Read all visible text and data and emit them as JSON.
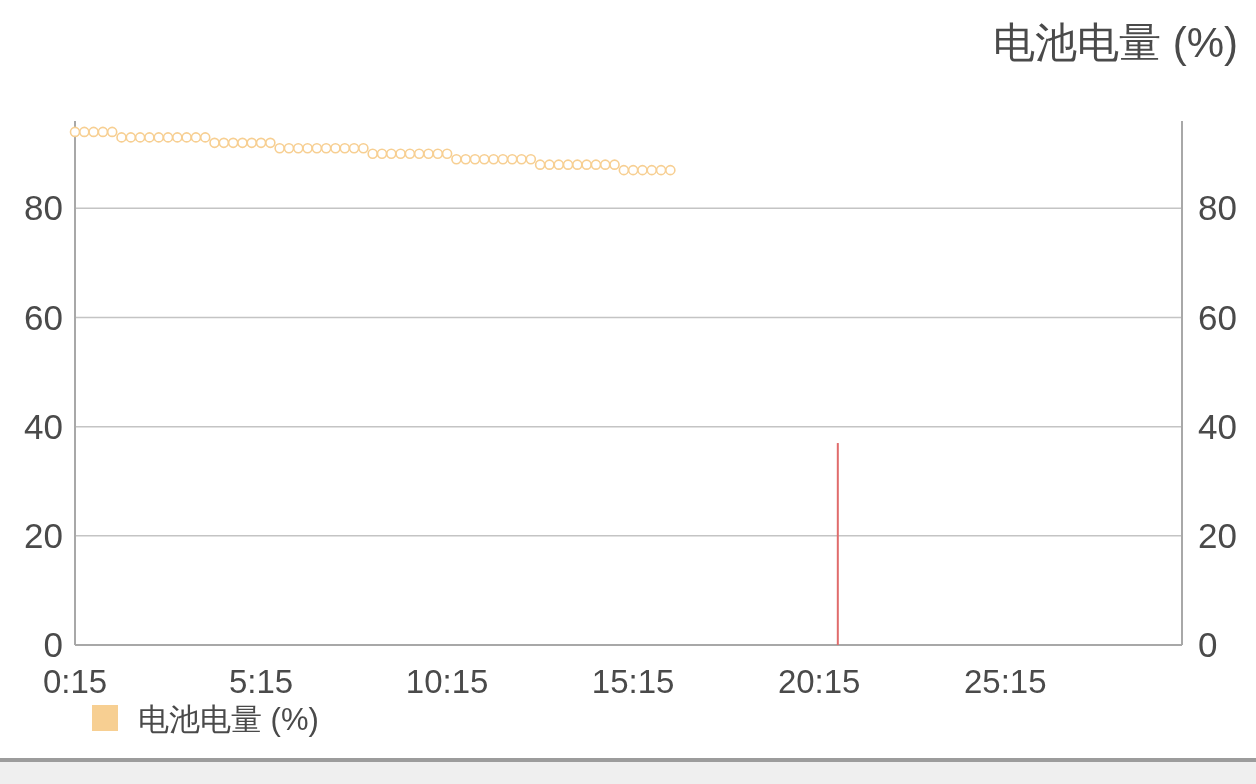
{
  "chart_data": {
    "type": "scatter",
    "y2label": "电池电量 (%)",
    "xlim": [
      0.25,
      30
    ],
    "xticks": [
      {
        "value": 0.25,
        "label": "0:15"
      },
      {
        "value": 5.25,
        "label": "5:15"
      },
      {
        "value": 10.25,
        "label": "10:15"
      },
      {
        "value": 15.25,
        "label": "15:15"
      },
      {
        "value": 20.25,
        "label": "20:15"
      },
      {
        "value": 25.25,
        "label": "25:15"
      }
    ],
    "ylim": [
      0,
      96
    ],
    "yticks": [
      0,
      20,
      40,
      60,
      80
    ],
    "y2lim": [
      0,
      96
    ],
    "y2ticks": [
      0,
      20,
      40,
      60,
      80
    ],
    "grid": "y",
    "legend": "bottom left",
    "marker": "circle",
    "series": [
      {
        "name": "电池电量 (%)",
        "color": "#f7cf92",
        "x": [
          0.25,
          0.5,
          0.75,
          1,
          1.25,
          1.5,
          1.75,
          2,
          2.25,
          2.5,
          2.75,
          3,
          3.25,
          3.5,
          3.75,
          4,
          4.25,
          4.5,
          4.75,
          5,
          5.25,
          5.5,
          5.75,
          6,
          6.25,
          6.5,
          6.75,
          7,
          7.25,
          7.5,
          7.75,
          8,
          8.25,
          8.5,
          8.75,
          9,
          9.25,
          9.5,
          9.75,
          10,
          10.25,
          10.5,
          10.75,
          11,
          11.25,
          11.5,
          11.75,
          12,
          12.25,
          12.5,
          12.75,
          13,
          13.25,
          13.5,
          13.75,
          14,
          14.25,
          14.5,
          14.75,
          15,
          15.25,
          15.5,
          15.75,
          16,
          16.25
        ],
        "values": [
          94,
          94,
          94,
          94,
          94,
          93,
          93,
          93,
          93,
          93,
          93,
          93,
          93,
          93,
          93,
          92,
          92,
          92,
          92,
          92,
          92,
          92,
          91,
          91,
          91,
          91,
          91,
          91,
          91,
          91,
          91,
          91,
          90,
          90,
          90,
          90,
          90,
          90,
          90,
          90,
          90,
          89,
          89,
          89,
          89,
          89,
          89,
          89,
          89,
          89,
          88,
          88,
          88,
          88,
          88,
          88,
          88,
          88,
          88,
          87,
          87,
          87,
          87,
          87,
          87
        ]
      },
      {
        "type": "bar",
        "color": "#e06c6c",
        "x": [
          20.75
        ],
        "values": [
          37
        ]
      }
    ]
  }
}
